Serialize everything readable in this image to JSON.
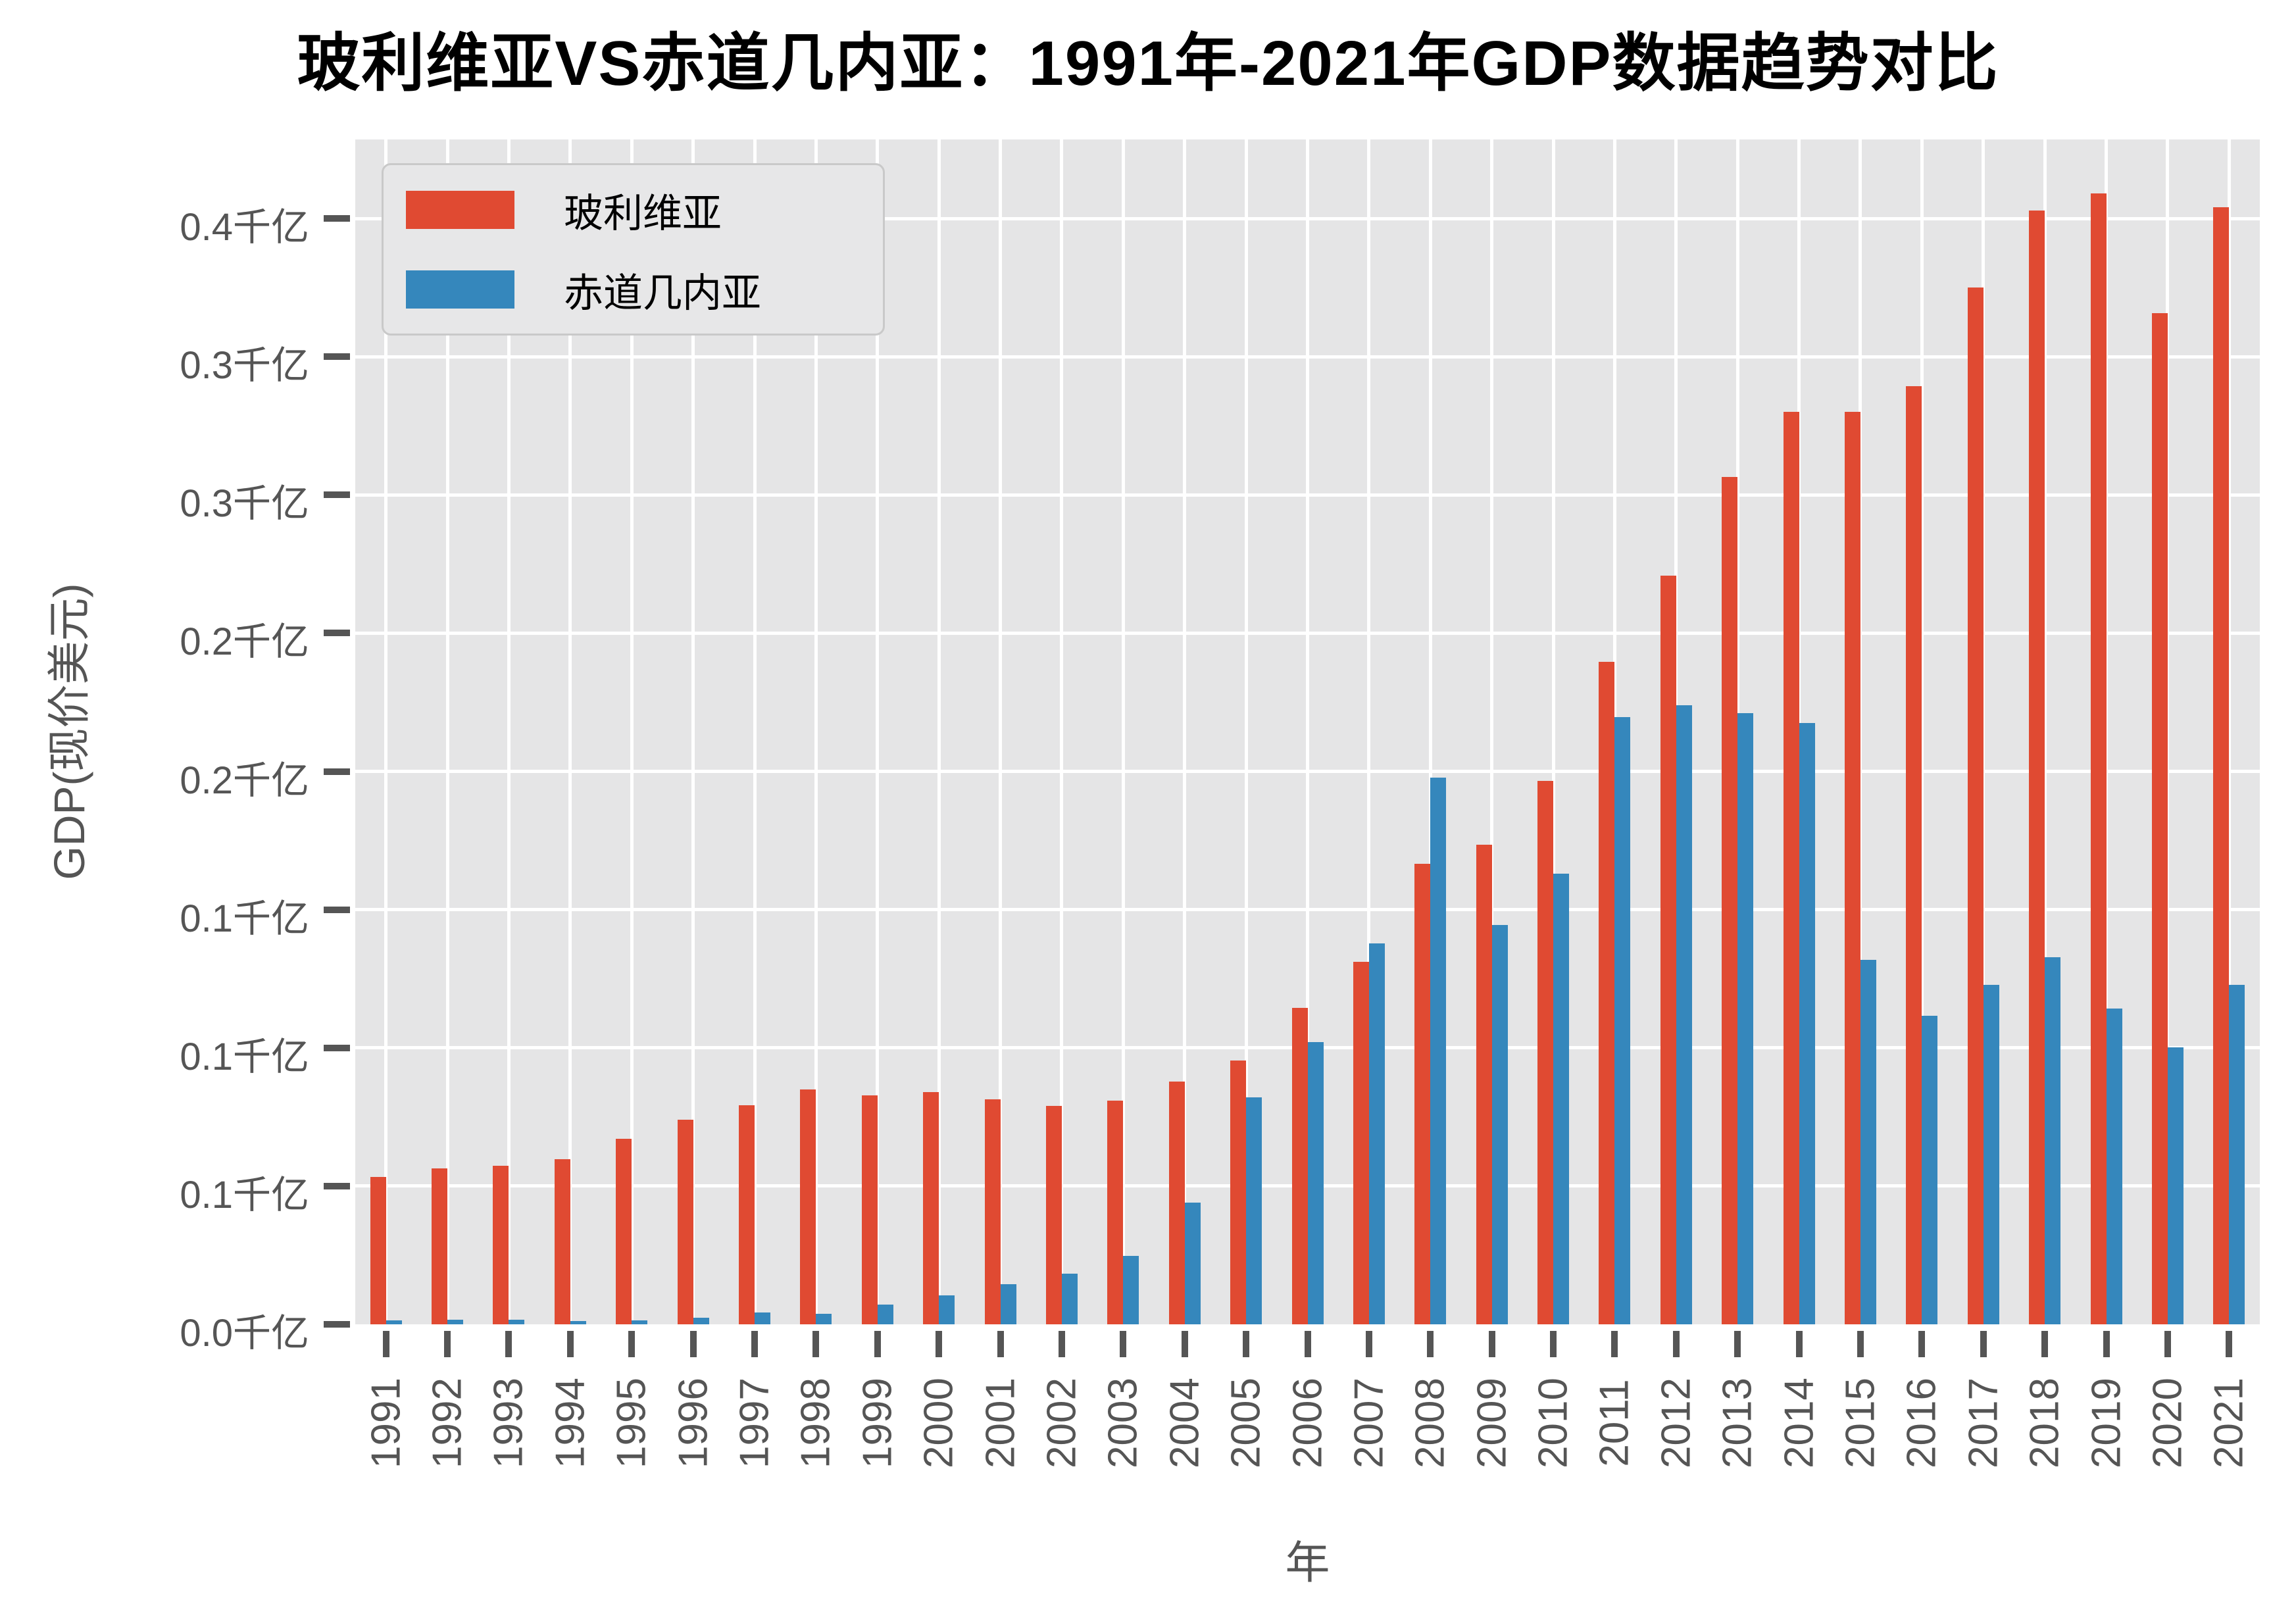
{
  "title": "玻利维亚VS赤道几内亚：1991年-2021年GDP数据趋势对比",
  "legend": {
    "items": [
      {
        "label": "玻利维亚",
        "color": "#e04a32"
      },
      {
        "label": "赤道几内亚",
        "color": "#3587bc"
      }
    ]
  },
  "colors": {
    "bolivia_red": "#e04a32",
    "equatorial_guinea_blue": "#3587bc",
    "plot_background": "#e5e5e6",
    "gridline": "#ffffff",
    "tick_text": "#555555",
    "title_text": "#000000"
  },
  "chart_data": {
    "type": "bar",
    "title": "玻利维亚VS赤道几内亚：1991年-2021年GDP数据趋势对比",
    "xlabel": "年",
    "ylabel": "GDP(现价美元)",
    "unit": "千亿",
    "grid": true,
    "legend_position": "upper left",
    "ylim": [
      0,
      0.4286
    ],
    "categories": [
      1991,
      1992,
      1993,
      1994,
      1995,
      1996,
      1997,
      1998,
      1999,
      2000,
      2001,
      2002,
      2003,
      2004,
      2005,
      2006,
      2007,
      2008,
      2009,
      2010,
      2011,
      2012,
      2013,
      2014,
      2015,
      2016,
      2017,
      2018,
      2019,
      2020,
      2021
    ],
    "series": [
      {
        "name": "玻利维亚",
        "color": "#e04a32",
        "values": [
          0.0534,
          0.0564,
          0.0573,
          0.0598,
          0.0672,
          0.074,
          0.0793,
          0.085,
          0.0829,
          0.084,
          0.0814,
          0.0791,
          0.0808,
          0.0877,
          0.0955,
          0.1145,
          0.1312,
          0.1667,
          0.1734,
          0.1965,
          0.2396,
          0.2708,
          0.3066,
          0.33,
          0.33,
          0.3394,
          0.3751,
          0.4029,
          0.409,
          0.3657,
          0.4041
        ]
      },
      {
        "name": "赤道几内亚",
        "color": "#3587bc",
        "values": [
          0.0015,
          0.0016,
          0.0016,
          0.0012,
          0.0014,
          0.0023,
          0.0044,
          0.0039,
          0.0071,
          0.0105,
          0.0146,
          0.0184,
          0.0248,
          0.0441,
          0.0822,
          0.102,
          0.1377,
          0.1977,
          0.1444,
          0.163,
          0.2197,
          0.2239,
          0.2212,
          0.2174,
          0.1318,
          0.1117,
          0.1229,
          0.1328,
          0.1142,
          0.1002,
          0.1227
        ]
      }
    ],
    "y_ticks": [
      {
        "value": 0.0,
        "label": "0.0千亿"
      },
      {
        "value": 0.05,
        "label": "0.1千亿"
      },
      {
        "value": 0.1,
        "label": "0.1千亿"
      },
      {
        "value": 0.15,
        "label": "0.1千亿"
      },
      {
        "value": 0.2,
        "label": "0.2千亿"
      },
      {
        "value": 0.25,
        "label": "0.2千亿"
      },
      {
        "value": 0.3,
        "label": "0.3千亿"
      },
      {
        "value": 0.35,
        "label": "0.3千亿"
      },
      {
        "value": 0.4,
        "label": "0.4千亿"
      }
    ]
  }
}
